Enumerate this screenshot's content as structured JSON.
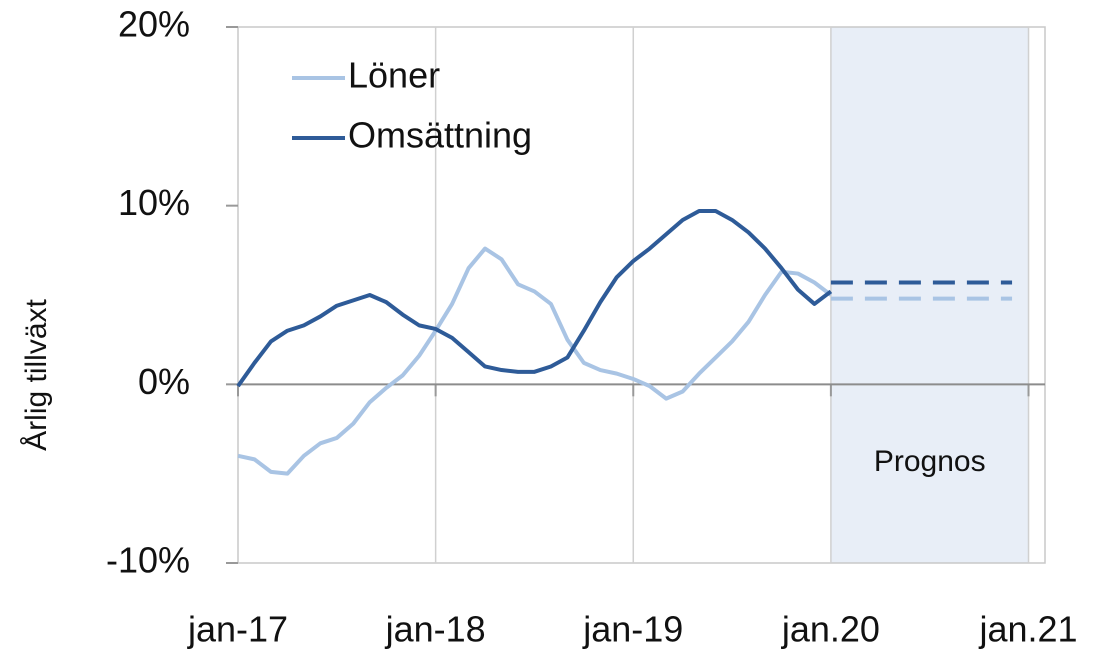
{
  "chart_data": {
    "type": "line",
    "y_axis_label": "Årlig tillväxt",
    "x": [
      0,
      1,
      2,
      3,
      4,
      5,
      6,
      7,
      8,
      9,
      10,
      11,
      12,
      13,
      14,
      15,
      16,
      17,
      18,
      19,
      20,
      21,
      22,
      23,
      24,
      25,
      26,
      27,
      28,
      29,
      30,
      31,
      32,
      33,
      34,
      35,
      36
    ],
    "xlim": [
      0,
      49
    ],
    "xticks": [
      {
        "value": 0,
        "label": "jan-17"
      },
      {
        "value": 12,
        "label": "jan-18"
      },
      {
        "value": 24,
        "label": "jan-19"
      },
      {
        "value": 36,
        "label": "jan.20"
      },
      {
        "value": 48,
        "label": "jan.21"
      }
    ],
    "ylim": [
      -10,
      20
    ],
    "yticks": [
      {
        "value": -10,
        "label": "-10%"
      },
      {
        "value": 0,
        "label": "0%"
      },
      {
        "value": 10,
        "label": "10%"
      },
      {
        "value": 20,
        "label": "20%"
      }
    ],
    "grid": true,
    "legend": "upper left",
    "forecast_region": {
      "label": "Prognos",
      "start": 36,
      "end": 48,
      "color": "#e8eef7"
    },
    "forecast_x": [
      36,
      47
    ],
    "series": [
      {
        "name": "Löner",
        "color": "#a9c4e4",
        "values": [
          -4.0,
          -4.2,
          -4.9,
          -5.0,
          -4.0,
          -3.3,
          -3.0,
          -2.2,
          -1.0,
          -0.2,
          0.5,
          1.6,
          3.0,
          4.5,
          6.5,
          7.6,
          7.0,
          5.6,
          5.2,
          4.5,
          2.5,
          1.2,
          0.8,
          0.6,
          0.3,
          -0.1,
          -0.8,
          -0.4,
          0.6,
          1.5,
          2.4,
          3.5,
          5.0,
          6.3,
          6.2,
          5.7,
          5.0
        ],
        "forecast_values": [
          4.8,
          4.8
        ]
      },
      {
        "name": "Omsättning",
        "color": "#2e5b98",
        "values": [
          -0.1,
          1.2,
          2.4,
          3.0,
          3.3,
          3.8,
          4.4,
          4.7,
          5.0,
          4.6,
          3.9,
          3.3,
          3.1,
          2.6,
          1.8,
          1.0,
          0.8,
          0.7,
          0.7,
          1.0,
          1.5,
          3.0,
          4.6,
          6.0,
          6.9,
          7.6,
          8.4,
          9.2,
          9.7,
          9.7,
          9.2,
          8.5,
          7.6,
          6.5,
          5.3,
          4.5,
          5.2
        ],
        "forecast_values": [
          5.7,
          5.7
        ]
      }
    ]
  }
}
